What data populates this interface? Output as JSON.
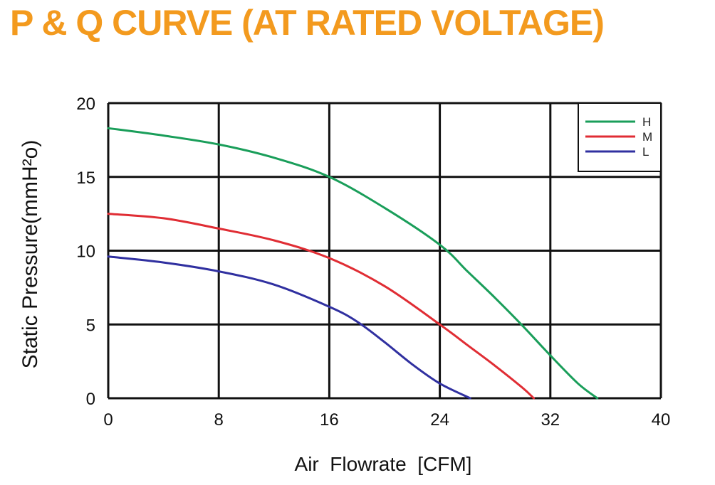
{
  "colors": {
    "title": "#f39a1e",
    "H": "#1a9e5a",
    "M": "#e02d34",
    "L": "#3030a0",
    "grid": "#111111"
  },
  "chart_data": {
    "type": "line",
    "title": "P & Q CURVE (AT RATED VOLTAGE)",
    "xlabel": "Air  Flowrate  [CFM]",
    "ylabel": "Static Pressure(mmH²o)",
    "xlim": [
      0,
      40
    ],
    "ylim": [
      0,
      20
    ],
    "xticks": [
      0,
      8,
      16,
      24,
      32,
      40
    ],
    "yticks": [
      0,
      5,
      10,
      15,
      20
    ],
    "grid": true,
    "legend_position": "top-right",
    "series": [
      {
        "name": "H",
        "color": "#1a9e5a",
        "points": [
          [
            0,
            18.3
          ],
          [
            4,
            17.8
          ],
          [
            8,
            17.2
          ],
          [
            12,
            16.3
          ],
          [
            16,
            15.0
          ],
          [
            20,
            12.9
          ],
          [
            24,
            10.4
          ],
          [
            26,
            8.6
          ],
          [
            28,
            6.8
          ],
          [
            30,
            4.9
          ],
          [
            32,
            2.9
          ],
          [
            34,
            1.0
          ],
          [
            35.4,
            0
          ]
        ]
      },
      {
        "name": "M",
        "color": "#e02d34",
        "points": [
          [
            0,
            12.5
          ],
          [
            4,
            12.2
          ],
          [
            8,
            11.5
          ],
          [
            12,
            10.7
          ],
          [
            16,
            9.5
          ],
          [
            20,
            7.6
          ],
          [
            24,
            5.0
          ],
          [
            26,
            3.6
          ],
          [
            28,
            2.2
          ],
          [
            30,
            0.7
          ],
          [
            30.8,
            0
          ]
        ]
      },
      {
        "name": "L",
        "color": "#3030a0",
        "points": [
          [
            0,
            9.6
          ],
          [
            4,
            9.2
          ],
          [
            8,
            8.6
          ],
          [
            12,
            7.7
          ],
          [
            16,
            6.2
          ],
          [
            18,
            5.2
          ],
          [
            20,
            3.8
          ],
          [
            22,
            2.3
          ],
          [
            24,
            1.0
          ],
          [
            26.2,
            0
          ]
        ]
      }
    ]
  }
}
